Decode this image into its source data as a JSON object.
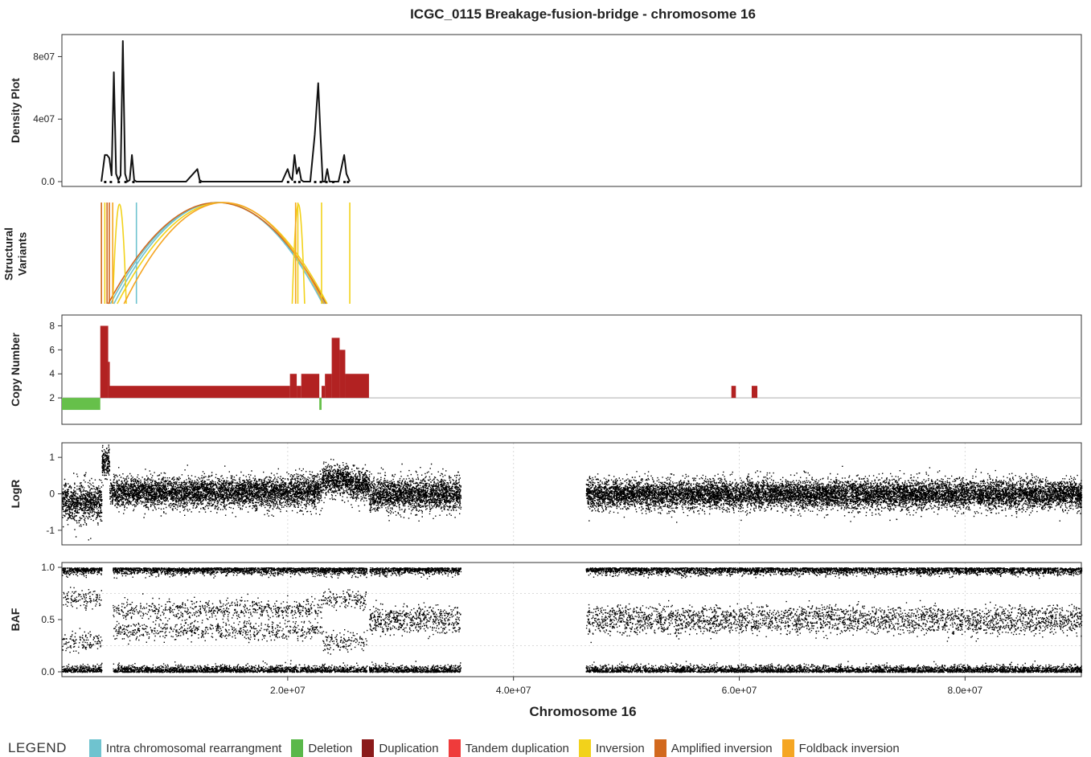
{
  "title": "ICGC_0115 Breakage-fusion-bridge - chromosome 16",
  "xlabel": "Chromosome 16",
  "x_ticks": [
    "2.0e+07",
    "4.0e+07",
    "6.0e+07",
    "8.0e+07"
  ],
  "legend": {
    "title": "LEGEND",
    "items": [
      {
        "label": "Intra chromosomal rearrangment",
        "color": "#6fc3cf"
      },
      {
        "label": "Deletion",
        "color": "#5ab84a"
      },
      {
        "label": "Duplication",
        "color": "#8b1a1a"
      },
      {
        "label": "Tandem duplication",
        "color": "#ef3b3b"
      },
      {
        "label": "Inversion",
        "color": "#f2d21b"
      },
      {
        "label": "Amplified inversion",
        "color": "#d2691e"
      },
      {
        "label": "Foldback inversion",
        "color": "#f5a623"
      }
    ]
  },
  "chart_data": [
    {
      "type": "line",
      "ylabel": "Density Plot",
      "y_ticks": [
        "0.0",
        "4e07",
        "8e07"
      ],
      "ylim": [
        0,
        90000000
      ],
      "xlim": [
        0,
        90300000
      ],
      "x": [
        3500000,
        3800000,
        4000000,
        4200000,
        4400000,
        4600000,
        4800000,
        5000000,
        5200000,
        5400000,
        5600000,
        5800000,
        6000000,
        6200000,
        6400000,
        6600000,
        6800000,
        7000000,
        8000000,
        11000000,
        12000000,
        12200000,
        12400000,
        13000000,
        18000000,
        19500000,
        20000000,
        20200000,
        20400000,
        20600000,
        20800000,
        21000000,
        21200000,
        21400000,
        21600000,
        22000000,
        22400000,
        22700000,
        22900000,
        23100000,
        23300000,
        23500000,
        23700000,
        23900000,
        24500000,
        25000000,
        25200000,
        25500000
      ],
      "y": [
        0,
        17000000,
        17000000,
        15000000,
        4000000,
        70000000,
        5000000,
        1000000,
        4000000,
        90000000,
        5000000,
        0,
        1000000,
        17000000,
        1000000,
        0,
        0,
        0,
        0,
        0,
        8000000,
        1000000,
        0,
        0,
        0,
        0,
        8000000,
        3000000,
        1000000,
        17000000,
        5000000,
        9000000,
        1000000,
        0,
        0,
        0,
        30000000,
        63000000,
        30000000,
        0,
        0,
        8000000,
        0,
        0,
        0,
        17000000,
        5000000,
        0
      ]
    },
    {
      "type": "arc",
      "ylabel": "Structural\nVariants",
      "xlim": [
        0,
        90300000
      ],
      "series": [
        {
          "category": "Intra chromosomal rearrangment",
          "color": "#6fc3cf",
          "arcs": [
            [
              4300000,
              23300000
            ],
            [
              4600000,
              23100000
            ]
          ],
          "lines": [
            6600000
          ]
        },
        {
          "category": "Amplified inversion",
          "color": "#d2691e",
          "arcs": [
            [
              4100000,
              23400000
            ]
          ],
          "lines": [
            3500000,
            4000000,
            4200000
          ]
        },
        {
          "category": "Inversion",
          "color": "#f2d21b",
          "arcs": [
            [
              4900000,
              23500000
            ],
            [
              4500000,
              5700000
            ],
            [
              20400000,
              21500000
            ]
          ],
          "lines": [
            3800000,
            23000000,
            25500000,
            20900000
          ]
        },
        {
          "category": "Foldback inversion",
          "color": "#f5a623",
          "arcs": [
            [
              5500000,
              23200000
            ]
          ],
          "lines": [
            4500000,
            20700000
          ]
        }
      ]
    },
    {
      "type": "step",
      "ylabel": "Copy Number",
      "y_ticks": [
        "2",
        "4",
        "6",
        "8"
      ],
      "ylim": [
        0,
        9
      ],
      "xlim": [
        0,
        90300000
      ],
      "baseline": 2,
      "segments": [
        {
          "start": 0,
          "end": 3400000,
          "value": 1
        },
        {
          "start": 3400000,
          "end": 4100000,
          "value": 8
        },
        {
          "start": 4100000,
          "end": 4200000,
          "value": 5
        },
        {
          "start": 4200000,
          "end": 20200000,
          "value": 3
        },
        {
          "start": 20200000,
          "end": 20800000,
          "value": 4
        },
        {
          "start": 20800000,
          "end": 21200000,
          "value": 3
        },
        {
          "start": 21200000,
          "end": 22800000,
          "value": 4
        },
        {
          "start": 22800000,
          "end": 23000000,
          "value": 1
        },
        {
          "start": 23000000,
          "end": 23300000,
          "value": 3
        },
        {
          "start": 23300000,
          "end": 23900000,
          "value": 4
        },
        {
          "start": 23900000,
          "end": 24600000,
          "value": 7
        },
        {
          "start": 24600000,
          "end": 25100000,
          "value": 6
        },
        {
          "start": 25100000,
          "end": 27200000,
          "value": 4
        },
        {
          "start": 59300000,
          "end": 59700000,
          "value": 3
        },
        {
          "start": 61100000,
          "end": 61600000,
          "value": 3
        }
      ]
    },
    {
      "type": "scatter",
      "ylabel": "LogR",
      "y_ticks": [
        "-1",
        "0",
        "1"
      ],
      "ylim": [
        -1.4,
        1.4
      ],
      "xlim": [
        0,
        90300000
      ],
      "regions": [
        {
          "start": 0,
          "end": 3500000,
          "mean": -0.2,
          "sd": 0.25
        },
        {
          "start": 3500000,
          "end": 4200000,
          "mean": 0.85,
          "sd": 0.2
        },
        {
          "start": 4200000,
          "end": 20200000,
          "mean": 0.05,
          "sd": 0.2
        },
        {
          "start": 20200000,
          "end": 23000000,
          "mean": 0.1,
          "sd": 0.22
        },
        {
          "start": 23000000,
          "end": 25500000,
          "mean": 0.4,
          "sd": 0.2
        },
        {
          "start": 25500000,
          "end": 27200000,
          "mean": 0.25,
          "sd": 0.2
        },
        {
          "start": 27200000,
          "end": 35300000,
          "mean": 0.0,
          "sd": 0.22
        },
        {
          "start": 46400000,
          "end": 90300000,
          "mean": 0.0,
          "sd": 0.2
        }
      ]
    },
    {
      "type": "scatter",
      "ylabel": "BAF",
      "y_ticks": [
        "0.0",
        "0.5",
        "1.0"
      ],
      "ylim": [
        0,
        1
      ],
      "xlim": [
        0,
        90300000
      ],
      "regions": [
        {
          "start": 0,
          "end": 3500000,
          "bands": [
            0.3,
            0.7
          ]
        },
        {
          "start": 4500000,
          "end": 23000000,
          "bands": [
            0.4,
            0.6
          ]
        },
        {
          "start": 23000000,
          "end": 27000000,
          "bands": [
            0.3,
            0.7
          ]
        },
        {
          "start": 27200000,
          "end": 35300000,
          "bands": [
            0.45,
            0.55
          ]
        },
        {
          "start": 46400000,
          "end": 90300000,
          "bands": [
            0.45,
            0.55
          ]
        }
      ]
    }
  ]
}
